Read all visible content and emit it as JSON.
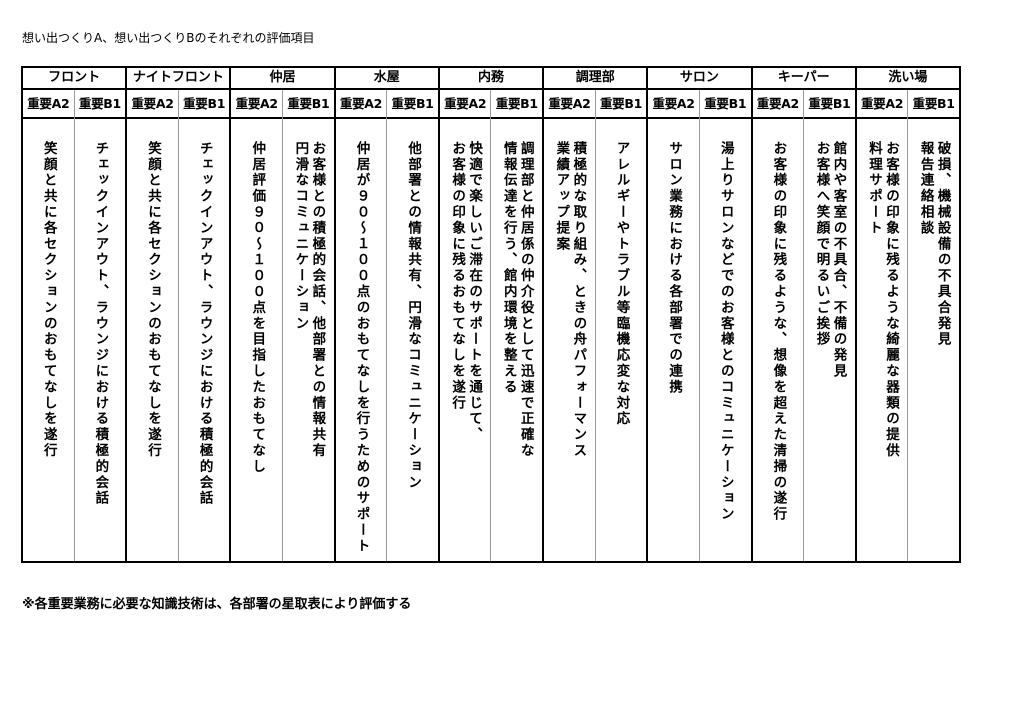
{
  "title": "想い出つくりA、想い出つくりBのそれぞれの評価項目",
  "departments": [
    {
      "name": "フロント",
      "items": [
        {
          "label": "重要A2",
          "lines": [
            "笑顔と共に各セクションのおもてなしを遂行"
          ]
        },
        {
          "label": "重要B1",
          "lines": [
            "チェックインアウト、ラウンジにおける積極的会話"
          ]
        }
      ]
    },
    {
      "name": "ナイトフロント",
      "items": [
        {
          "label": "重要A2",
          "lines": [
            "笑顔と共に各セクションのおもてなしを遂行"
          ]
        },
        {
          "label": "重要B1",
          "lines": [
            "チェックインアウト、ラウンジにおける積極的会話"
          ]
        }
      ]
    },
    {
      "name": "仲居",
      "items": [
        {
          "label": "重要A2",
          "lines": [
            "仲居評価９０～１００点を目指したおもてなし"
          ]
        },
        {
          "label": "重要B1",
          "lines": [
            "お客様との積極的会話、他部署との情報共有",
            "円滑なコミュニケーション"
          ]
        }
      ]
    },
    {
      "name": "水屋",
      "items": [
        {
          "label": "重要A2",
          "lines": [
            "仲居が９０～１００点のおもてなしを行うためのサポート"
          ]
        },
        {
          "label": "重要B1",
          "lines": [
            "他部署との情報共有、円滑なコミュニケーション"
          ]
        }
      ]
    },
    {
      "name": "内務",
      "items": [
        {
          "label": "重要A2",
          "lines": [
            "快適で楽しいご滞在のサポートを通じて、",
            "お客様の印象に残るおもてなしを遂行"
          ]
        },
        {
          "label": "重要B1",
          "lines": [
            "調理部と仲居係の仲介役として迅速で正確な",
            "情報伝達を行う、館内環境を整える"
          ]
        }
      ]
    },
    {
      "name": "調理部",
      "items": [
        {
          "label": "重要A2",
          "lines": [
            "積極的な取り組み、ときの舟パフォーマンス",
            "業績アップ提案"
          ]
        },
        {
          "label": "重要B1",
          "lines": [
            "アレルギーやトラブル等臨機応変な対応"
          ]
        }
      ]
    },
    {
      "name": "サロン",
      "items": [
        {
          "label": "重要A2",
          "lines": [
            "サロン業務における各部署での連携"
          ]
        },
        {
          "label": "重要B1",
          "lines": [
            "湯上りサロンなどでのお客様とのコミュニケーション"
          ]
        }
      ]
    },
    {
      "name": "キーパー",
      "items": [
        {
          "label": "重要A2",
          "lines": [
            "お客様の印象に残るような、想像を超えた清掃の遂行"
          ]
        },
        {
          "label": "重要B1",
          "lines": [
            "館内や客室の不具合、不備の発見",
            "お客様へ笑顔で明るいご挨拶"
          ]
        }
      ]
    },
    {
      "name": "洗い場",
      "items": [
        {
          "label": "重要A2",
          "lines": [
            "お客様の印象に残るような綺麗な器類の提供",
            "料理サポート"
          ]
        },
        {
          "label": "重要B1",
          "lines": [
            "破損、機械設備の不具合発見",
            "報告連絡相談"
          ]
        }
      ]
    }
  ],
  "note": "※各重要業務に必要な知識技術は、各部署の星取表により評価する"
}
